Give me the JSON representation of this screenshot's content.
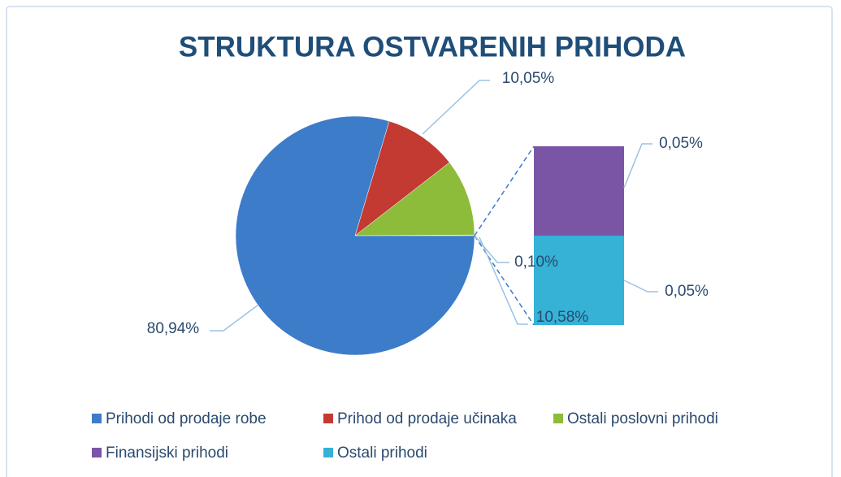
{
  "chart_data": {
    "type": "bar-of-pie",
    "title": "STRUKTURA OSTVARENIH PRIHODA",
    "categories": [
      "Prihodi od prodaje robe",
      "Prihod od prodaje učinaka",
      "Ostali poslovni prihodi",
      "Finansijski prihodi",
      "Ostali prihodi"
    ],
    "values": [
      80.94,
      10.05,
      10.58,
      0.05,
      0.05
    ],
    "value_labels": [
      "80,94%",
      "10,05%",
      "10,58%",
      "0,05%",
      "0,05%"
    ],
    "colors": [
      "#3d7cc9",
      "#c23a32",
      "#8dbb3a",
      "#7b55a5",
      "#35b2d6"
    ],
    "other_value": 0.1,
    "other_label": "0,10%",
    "legend": "bottom"
  }
}
